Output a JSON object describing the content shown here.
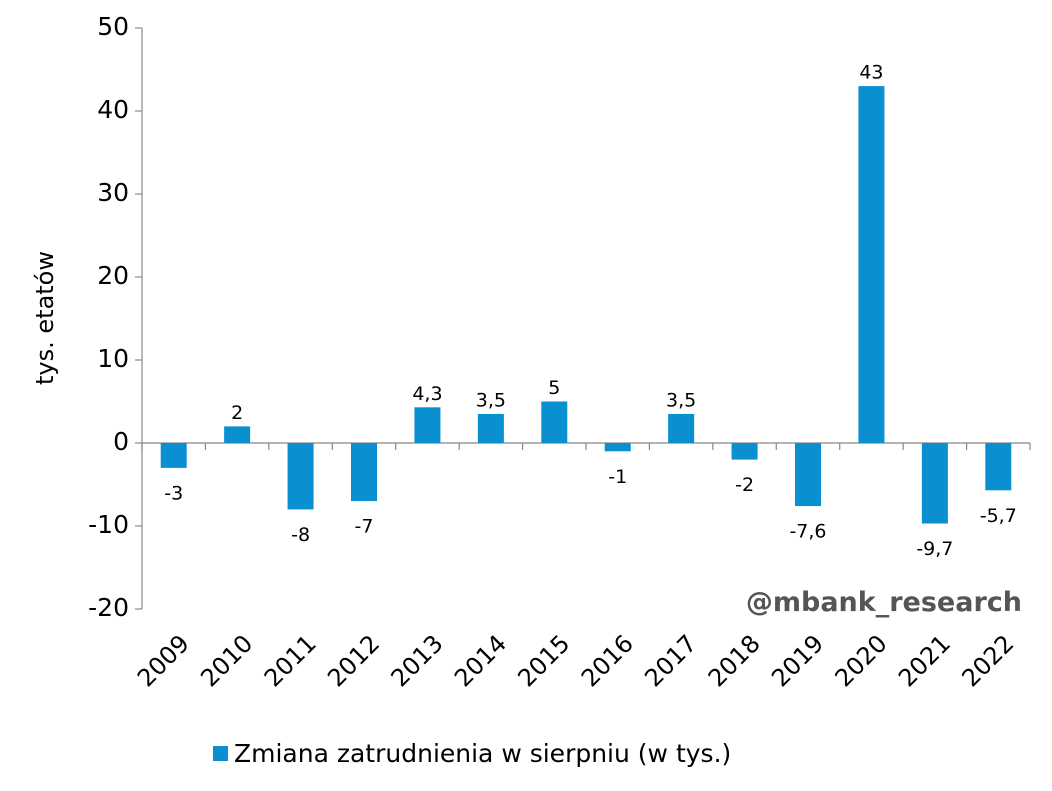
{
  "chart_data": {
    "type": "bar",
    "categories": [
      "2009",
      "2010",
      "2011",
      "2012",
      "2013",
      "2014",
      "2015",
      "2016",
      "2017",
      "2018",
      "2019",
      "2020",
      "2021",
      "2022"
    ],
    "values": [
      -3,
      2,
      -8,
      -7,
      4.3,
      3.5,
      5,
      -1,
      3.5,
      -2,
      -7.6,
      43,
      -9.7,
      -5.7
    ],
    "data_labels": [
      "-3",
      "2",
      "-8",
      "-7",
      "4,3",
      "3,5",
      "5",
      "-1",
      "3,5",
      "-2",
      "-7,6",
      "43",
      "-9,7",
      "-5,7"
    ],
    "series": [
      {
        "name": "Zmiana zatrudnienia w sierpniu (w tys.)"
      }
    ],
    "title": "",
    "xlabel": "",
    "ylabel": "tys. etatów",
    "ylim": [
      -20,
      50
    ],
    "yticks": [
      -20,
      -10,
      0,
      10,
      20,
      30,
      40,
      50
    ],
    "ytick_labels": [
      "-20",
      "-10",
      "0",
      "10",
      "20",
      "30",
      "40",
      "50"
    ],
    "grid": false,
    "legend_position": "bottom",
    "annotation": "@mbank_research",
    "bar_color": "#0A8FD0"
  }
}
